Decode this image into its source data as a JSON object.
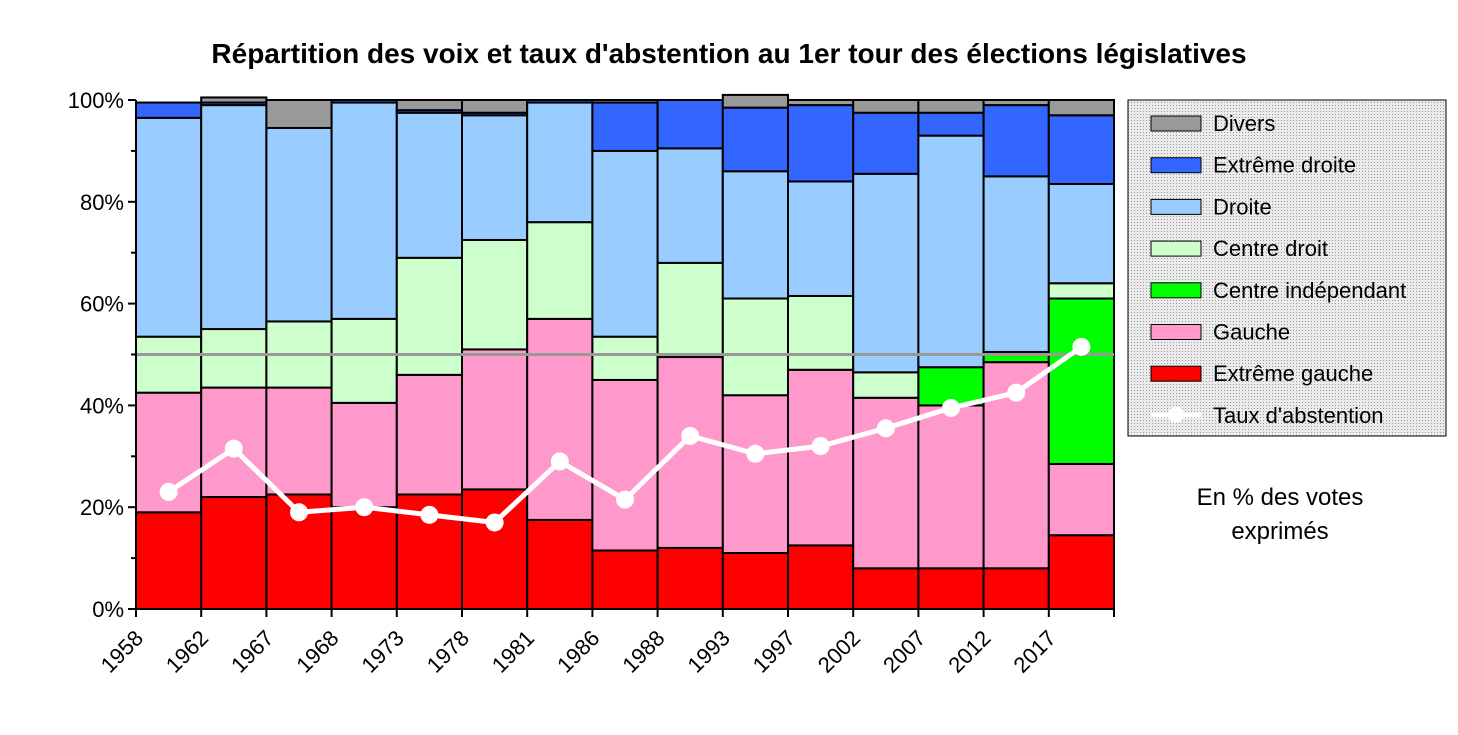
{
  "chart_data": {
    "type": "bar",
    "stacked": true,
    "title": "Répartition des voix et taux d'abstention au 1er tour des élections législatives",
    "categories": [
      "1958",
      "1962",
      "1967",
      "1968",
      "1973",
      "1978",
      "1981",
      "1986",
      "1988",
      "1993",
      "1997",
      "2002",
      "2007",
      "2012",
      "2017"
    ],
    "ylim": [
      0,
      100
    ],
    "y_ticks": [
      "0%",
      "20%",
      "40%",
      "60%",
      "80%",
      "100%"
    ],
    "reference_line": 50,
    "series": [
      {
        "name": "Extrême gauche",
        "color": "#ff0000",
        "values": [
          19,
          22,
          22.5,
          20,
          22.5,
          23.5,
          17.5,
          11.5,
          12,
          11,
          12.5,
          8,
          8,
          8,
          14.5
        ]
      },
      {
        "name": "Gauche",
        "color": "#ff99cc",
        "values": [
          23.5,
          21.5,
          21,
          20.5,
          23.5,
          27.5,
          39.5,
          33.5,
          37.5,
          31,
          34.5,
          33.5,
          32,
          40.5,
          14
        ]
      },
      {
        "name": "Centre indépendant",
        "color": "#00ff00",
        "values": [
          0,
          0,
          0,
          0,
          0,
          0,
          0,
          0,
          0,
          0,
          0,
          0,
          7.5,
          2,
          32.5
        ]
      },
      {
        "name": "Centre droit",
        "color": "#ccffcc",
        "values": [
          11,
          11.5,
          13,
          16.5,
          23,
          21.5,
          19,
          8.5,
          18.5,
          19,
          14.5,
          5,
          0,
          0,
          3
        ]
      },
      {
        "name": "Droite",
        "color": "#99ccff",
        "values": [
          43,
          44,
          38,
          42.5,
          28.5,
          24.5,
          23.5,
          36.5,
          22.5,
          25,
          22.5,
          39,
          45.5,
          34.5,
          19.5
        ]
      },
      {
        "name": "Extrême droite",
        "color": "#3366ff",
        "values": [
          3,
          0.5,
          0,
          0.5,
          0.5,
          0.5,
          0.5,
          9.5,
          9.5,
          12.5,
          15,
          12,
          4.5,
          14,
          13.5
        ]
      },
      {
        "name": "Divers",
        "color": "#999999",
        "values": [
          0,
          1,
          5.5,
          0,
          2,
          2.5,
          0,
          0.5,
          0,
          2.5,
          1,
          2.5,
          2.5,
          1,
          3
        ]
      }
    ],
    "line": {
      "name": "Taux d'abstention",
      "color": "#ffffff",
      "values": [
        23,
        31.5,
        19,
        20,
        18.5,
        17,
        29,
        21.5,
        34,
        30.5,
        32,
        35.5,
        39.5,
        42.5,
        51.5
      ]
    },
    "legend_order": [
      "Divers",
      "Extrême droite",
      "Droite",
      "Centre droit",
      "Centre indépendant",
      "Gauche",
      "Extrême gauche",
      "Taux d'abstention"
    ],
    "legend_position": "right",
    "annotation_lines": [
      "En % des votes",
      "exprimés"
    ]
  }
}
